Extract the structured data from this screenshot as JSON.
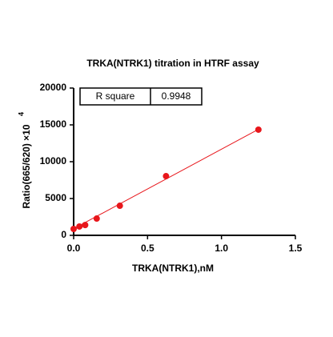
{
  "chart_data": {
    "type": "scatter",
    "title": "TRKA(NTRK1) titration in HTRF assay",
    "xlabel": "TRKA(NTRK1),nM",
    "ylabel": "Ratio(665/620) ×10",
    "ylabel_sup": "4",
    "x": [
      0,
      0.039,
      0.078,
      0.156,
      0.3125,
      0.625,
      1.25
    ],
    "series": [
      {
        "color": "#e8161b",
        "values": [
          870,
          1200,
          1400,
          2280,
          4020,
          8040,
          14350
        ]
      }
    ],
    "fit_line": {
      "color": "#e8161b",
      "x": [
        0,
        1.25
      ],
      "values": [
        900,
        14400
      ]
    },
    "stats": {
      "label": "R square",
      "value": "0.9948"
    },
    "xlim": [
      0,
      1.5
    ],
    "xticks": [
      {
        "value": 0,
        "label": "0.0"
      },
      0.5,
      {
        "value": 1,
        "label": "1.0"
      },
      1.5
    ],
    "ylim": [
      0,
      20000
    ],
    "yticks": [
      0,
      5000,
      10000,
      15000,
      20000
    ]
  }
}
